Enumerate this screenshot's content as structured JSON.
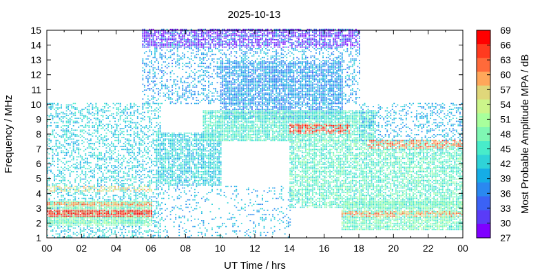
{
  "chart_data": {
    "type": "heatmap",
    "title": "2025-10-13",
    "xlabel": "UT Time / hrs",
    "ylabel": "Frequency / MHz",
    "colorbar_label": "Most Probable Amplitude MPA / dB",
    "xlim": [
      0,
      24
    ],
    "ylim": [
      1,
      15
    ],
    "x_tick_labels": [
      "00",
      "02",
      "04",
      "06",
      "08",
      "10",
      "12",
      "14",
      "16",
      "18",
      "20",
      "22",
      "00"
    ],
    "y_ticks": [
      1,
      2,
      3,
      4,
      5,
      6,
      7,
      8,
      9,
      10,
      11,
      12,
      13,
      14,
      15
    ],
    "colorbar_ticks": [
      69,
      66,
      63,
      60,
      57,
      54,
      51,
      48,
      45,
      42,
      39,
      36,
      33,
      30,
      27
    ],
    "colorbar_range": [
      27,
      69
    ],
    "colorbar_colors": [
      "#ff0000",
      "#ff3a1f",
      "#ff6a3a",
      "#ffa75a",
      "#e0d77a",
      "#ccf58a",
      "#a8ff9c",
      "#7ff7b3",
      "#48ecca",
      "#2fd3d8",
      "#15ade6",
      "#2a88f0",
      "#3b62f5",
      "#5a3cf7",
      "#7f00ff"
    ],
    "grid": false,
    "colorbar_position": "right",
    "regions": [
      {
        "x": [
          0,
          6.5
        ],
        "y": [
          1,
          10
        ],
        "mpa": 42,
        "density": 0.4
      },
      {
        "x": [
          0,
          6
        ],
        "y": [
          1.8,
          3.5
        ],
        "mpa": 48,
        "density": 0.9
      },
      {
        "x": [
          0,
          6
        ],
        "y": [
          2.4,
          2.9
        ],
        "mpa": 66,
        "density": 0.85
      },
      {
        "x": [
          0,
          6
        ],
        "y": [
          3.1,
          3.4
        ],
        "mpa": 60,
        "density": 0.7
      },
      {
        "x": [
          0,
          6
        ],
        "y": [
          4.1,
          4.4
        ],
        "mpa": 56,
        "density": 0.5
      },
      {
        "x": [
          5.5,
          18
        ],
        "y": [
          10,
          15
        ],
        "mpa": 39,
        "density": 0.35
      },
      {
        "x": [
          5.5,
          18
        ],
        "y": [
          13.8,
          15
        ],
        "mpa": 30,
        "density": 0.6
      },
      {
        "x": [
          6.3,
          10
        ],
        "y": [
          4.5,
          8
        ],
        "mpa": 42,
        "density": 0.75
      },
      {
        "x": [
          10,
          17
        ],
        "y": [
          9,
          12.8
        ],
        "mpa": 38,
        "density": 0.7
      },
      {
        "x": [
          9,
          19
        ],
        "y": [
          7.5,
          9.5
        ],
        "mpa": 45,
        "density": 0.85
      },
      {
        "x": [
          14,
          17.5
        ],
        "y": [
          8,
          8.6
        ],
        "mpa": 64,
        "density": 0.6
      },
      {
        "x": [
          14,
          24
        ],
        "y": [
          3,
          7.5
        ],
        "mpa": 46,
        "density": 0.7
      },
      {
        "x": [
          17,
          24
        ],
        "y": [
          1.5,
          3.5
        ],
        "mpa": 47,
        "density": 0.85
      },
      {
        "x": [
          17,
          24
        ],
        "y": [
          2.4,
          2.8
        ],
        "mpa": 60,
        "density": 0.6
      },
      {
        "x": [
          18.5,
          24
        ],
        "y": [
          7,
          7.5
        ],
        "mpa": 62,
        "density": 0.5
      },
      {
        "x": [
          18,
          24
        ],
        "y": [
          7.5,
          10
        ],
        "mpa": 40,
        "density": 0.3
      },
      {
        "x": [
          6.3,
          14
        ],
        "y": [
          1,
          4.5
        ],
        "mpa": 40,
        "density": 0.15
      }
    ]
  }
}
